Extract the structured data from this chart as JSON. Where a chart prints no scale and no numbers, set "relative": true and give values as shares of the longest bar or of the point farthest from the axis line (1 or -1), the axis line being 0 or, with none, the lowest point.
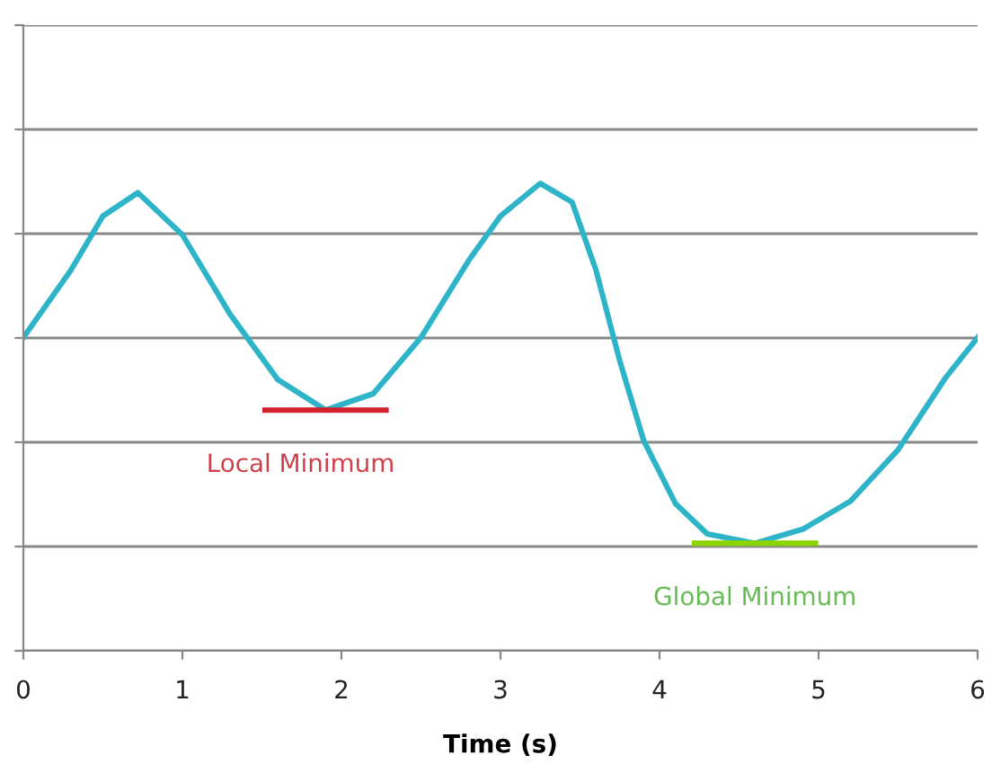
{
  "chart_data": {
    "type": "line",
    "relative": true,
    "xlabel": "Time (s)",
    "xlim": [
      0,
      6
    ],
    "xticks": [
      0,
      1,
      2,
      3,
      4,
      5,
      6
    ],
    "grid": "y",
    "legend": false,
    "marker": "none",
    "line_style": "solid",
    "x": [
      0,
      0.3,
      0.5,
      0.72,
      1.0,
      1.3,
      1.6,
      1.9,
      2.2,
      2.5,
      2.8,
      3.0,
      3.25,
      3.45,
      3.6,
      3.75,
      3.9,
      4.1,
      4.3,
      4.6,
      4.9,
      5.2,
      5.5,
      5.8,
      6.0
    ],
    "series": [
      {
        "color": "#2eb4c8",
        "values": [
          0.67,
          0.815,
          0.93,
          0.98,
          0.89,
          0.72,
          0.58,
          0.515,
          0.55,
          0.67,
          0.835,
          0.93,
          1.0,
          0.96,
          0.815,
          0.62,
          0.45,
          0.315,
          0.25,
          0.23,
          0.26,
          0.32,
          0.43,
          0.585,
          0.67
        ]
      }
    ],
    "annotations": [
      {
        "text": "Local Minimum",
        "x": 1.9,
        "y": 0.515
      },
      {
        "text": "Global Minimum",
        "x": 4.6,
        "y": 0.23
      }
    ]
  }
}
